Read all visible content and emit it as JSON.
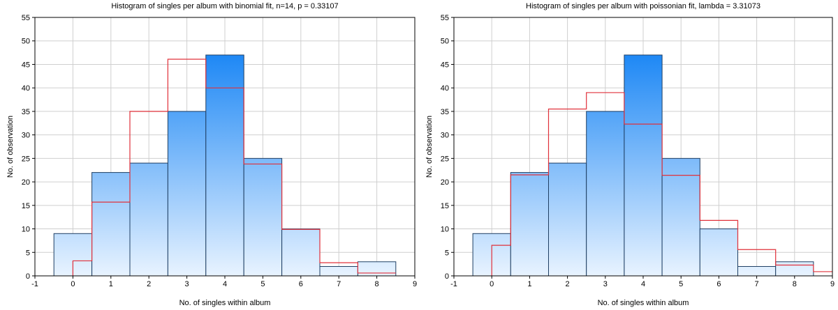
{
  "chart_data": [
    {
      "type": "bar",
      "title": "Histogram of singles per album with binomial fit, n=14, p = 0.33107",
      "xlabel": "No. of singles within album",
      "ylabel": "No. of observation",
      "xlim": [
        -1,
        9
      ],
      "ylim": [
        0,
        55
      ],
      "xticks": [
        "-1",
        "0",
        "1",
        "2",
        "3",
        "4",
        "5",
        "6",
        "7",
        "8",
        "9"
      ],
      "yticks": [
        "0",
        "5",
        "10",
        "15",
        "20",
        "25",
        "30",
        "35",
        "40",
        "45",
        "50",
        "55"
      ],
      "grid": true,
      "bar_color_top": "#1e88f5",
      "bar_color_bottom": "#e8f3ff",
      "bar_edge_color": "#1f3f63",
      "fit_color": "#e0303a",
      "categories": [
        0,
        1,
        2,
        3,
        4,
        5,
        6,
        7,
        8
      ],
      "values": [
        9,
        22,
        24,
        35,
        47,
        25,
        10,
        2,
        3
      ],
      "fit": {
        "x": [
          0,
          1,
          2,
          3,
          4,
          5,
          6,
          7,
          8
        ],
        "y": [
          3.2,
          15.7,
          35,
          46.1,
          40,
          23.8,
          9.9,
          2.8,
          0.6
        ]
      }
    },
    {
      "type": "bar",
      "title": "Histogram of singles per album with poissonian fit, lambda = 3.31073",
      "xlabel": "No. of singles within album",
      "ylabel": "No. of observation",
      "xlim": [
        -1,
        9
      ],
      "ylim": [
        0,
        55
      ],
      "xticks": [
        "-1",
        "0",
        "1",
        "2",
        "3",
        "4",
        "5",
        "6",
        "7",
        "8",
        "9"
      ],
      "yticks": [
        "0",
        "5",
        "10",
        "15",
        "20",
        "25",
        "30",
        "35",
        "40",
        "45",
        "50",
        "55"
      ],
      "grid": true,
      "bar_color_top": "#1e88f5",
      "bar_color_bottom": "#e8f3ff",
      "bar_edge_color": "#1f3f63",
      "fit_color": "#e0303a",
      "categories": [
        0,
        1,
        2,
        3,
        4,
        5,
        6,
        7,
        8
      ],
      "values": [
        9,
        22,
        24,
        35,
        47,
        25,
        10,
        2,
        3
      ],
      "fit": {
        "x": [
          0,
          1,
          2,
          3,
          4,
          5,
          6,
          7,
          8,
          9
        ],
        "y": [
          6.5,
          21.5,
          35.5,
          39,
          32.3,
          21.4,
          11.8,
          5.6,
          2.3,
          0.9
        ]
      }
    }
  ]
}
